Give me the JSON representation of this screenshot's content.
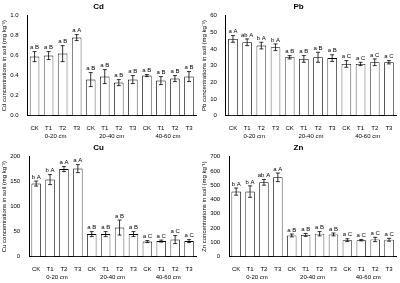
{
  "chart_data": [
    {
      "type": "bar",
      "title": "Cd",
      "y_label": "Cd concentrations in soil (mg kg⁻¹)",
      "categories": [
        "CK",
        "T1",
        "T2",
        "T3",
        "CK",
        "T1",
        "T2",
        "T3",
        "CK",
        "T1",
        "T2",
        "T3"
      ],
      "group_labels": [
        "0-20 cm",
        "20-40 cm",
        "40-60 cm"
      ],
      "values": [
        0.59,
        0.6,
        0.62,
        0.78,
        0.36,
        0.39,
        0.33,
        0.36,
        0.4,
        0.35,
        0.37,
        0.39
      ],
      "errors": [
        0.05,
        0.04,
        0.08,
        0.03,
        0.07,
        0.07,
        0.03,
        0.04,
        0.01,
        0.04,
        0.03,
        0.05
      ],
      "annotations": [
        "a B",
        "a B",
        "a B",
        "a A",
        "a B",
        "a B",
        "a B",
        "a B",
        "a B",
        "a B",
        "a B",
        "a B"
      ],
      "color": "#ffffff",
      "ylim": [
        0,
        1.0
      ],
      "yticks": [
        {
          "value": 0,
          "label": "0.0"
        },
        0.2,
        0.4,
        0.6,
        0.8,
        {
          "value": 1.0,
          "label": "1.0"
        }
      ],
      "grid": false
    },
    {
      "type": "bar",
      "title": "Pb",
      "y_label": "Pb concentrations in soil (mg kg⁻¹)",
      "categories": [
        "CK",
        "T1",
        "T2",
        "T3",
        "CK",
        "T1",
        "T2",
        "T3",
        "CK",
        "T1",
        "T2",
        "T3"
      ],
      "group_labels": [
        "0-20 cm",
        "20-40 cm",
        "40-60 cm"
      ],
      "values": [
        46,
        44,
        42,
        41,
        35,
        34,
        35,
        34.5,
        31,
        31,
        32,
        32
      ],
      "errors": [
        2,
        2,
        2,
        2,
        1,
        2,
        3,
        2,
        2,
        1,
        2,
        1
      ],
      "annotations": [
        "a A",
        "ab A",
        "b A",
        "b A",
        "a B",
        "a B",
        "a B",
        "a B",
        "a C",
        "a C",
        "a C",
        "a C"
      ],
      "color": "#ffffff",
      "ylim": [
        0,
        60
      ],
      "yticks": [
        0,
        10,
        20,
        30,
        40,
        50,
        60
      ],
      "grid": false
    },
    {
      "type": "bar",
      "title": "Cu",
      "y_label": "Cu concentrations in soil (mg kg⁻¹)",
      "categories": [
        "CK",
        "T1",
        "T2",
        "T3",
        "CK",
        "T1",
        "T2",
        "T3",
        "CK",
        "T1",
        "T2",
        "T3"
      ],
      "group_labels": [
        "0-20 cm",
        "20-40 cm",
        "40-60 cm"
      ],
      "values": [
        146,
        154,
        175,
        176,
        45,
        45,
        58,
        45,
        30,
        31,
        34,
        31
      ],
      "errors": [
        5,
        10,
        5,
        8,
        5,
        5,
        15,
        5,
        2,
        2,
        8,
        3
      ],
      "annotations": [
        "b A",
        "b A",
        "a A",
        "a A",
        "a B",
        "a B",
        "a B",
        "a B",
        "a C",
        "a C",
        "a C",
        "a C"
      ],
      "color": "#ffffff",
      "ylim": [
        0,
        200
      ],
      "yticks": [
        0,
        50,
        100,
        150,
        200
      ],
      "grid": false
    },
    {
      "type": "bar",
      "title": "Zn",
      "y_label": "Zn concentrations in soil (mg kg⁻¹)",
      "categories": [
        "CK",
        "T1",
        "T2",
        "T3",
        "CK",
        "T1",
        "T2",
        "T3",
        "CK",
        "T1",
        "T2",
        "T3"
      ],
      "group_labels": [
        "0-20 cm",
        "20-40 cm",
        "40-60 cm"
      ],
      "values": [
        455,
        455,
        520,
        555,
        148,
        152,
        160,
        155,
        115,
        115,
        120,
        118
      ],
      "errors": [
        25,
        40,
        20,
        30,
        10,
        10,
        15,
        10,
        10,
        5,
        15,
        10
      ],
      "annotations": [
        "b A",
        "b A",
        "ab A",
        "a A",
        "a B",
        "a B",
        "a B",
        "a B",
        "a C",
        "a C",
        "a C",
        "a C"
      ],
      "color": "#ffffff",
      "ylim": [
        0,
        700
      ],
      "yticks": [
        0,
        100,
        200,
        300,
        400,
        500,
        600,
        700
      ],
      "grid": false
    }
  ]
}
